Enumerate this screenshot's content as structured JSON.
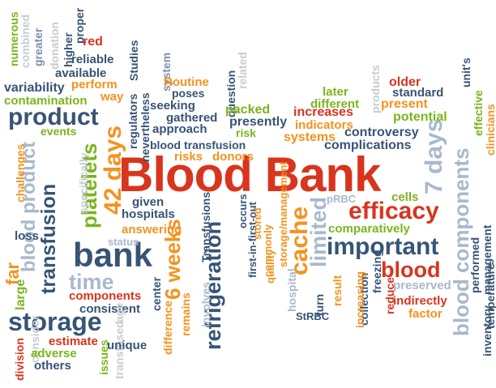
{
  "colors": {
    "red": "#d9341e",
    "orange": "#f5921e",
    "green": "#7ab51d",
    "navy": "#375475",
    "slate": "#7c90a8",
    "lightblue": "#a9b9cc",
    "lightgray": "#c6ccd3",
    "background": "#ffffff"
  },
  "words": [
    {
      "text": "Blood Bank",
      "color": "red"
    },
    {
      "text": "efficacy",
      "color": "red"
    },
    {
      "text": "important",
      "color": "navy"
    },
    {
      "text": "blood",
      "color": "red"
    },
    {
      "text": "bank",
      "color": "navy"
    },
    {
      "text": "storage",
      "color": "navy"
    },
    {
      "text": "product",
      "color": "navy"
    },
    {
      "text": "time",
      "color": "lightblue"
    },
    {
      "text": "transfusion",
      "color": "navy"
    },
    {
      "text": "platelets",
      "color": "green"
    },
    {
      "text": "42 days",
      "color": "orange"
    },
    {
      "text": "6 weeks",
      "color": "orange"
    },
    {
      "text": "refrigeration",
      "color": "navy"
    },
    {
      "text": "cache",
      "color": "orange"
    },
    {
      "text": "limited",
      "color": "lightblue"
    },
    {
      "text": "7 days",
      "color": "lightblue"
    },
    {
      "text": "blood components",
      "color": "lightblue"
    },
    {
      "text": "blood product",
      "color": "lightblue"
    },
    {
      "text": "far",
      "color": "orange"
    },
    {
      "text": "numerous",
      "color": "green"
    },
    {
      "text": "combined",
      "color": "lightgray"
    },
    {
      "text": "greater",
      "color": "slate"
    },
    {
      "text": "donation",
      "color": "lightgray"
    },
    {
      "text": "higher",
      "color": "navy"
    },
    {
      "text": "proper",
      "color": "navy"
    },
    {
      "text": "red",
      "color": "red"
    },
    {
      "text": "reliable",
      "color": "navy"
    },
    {
      "text": "available",
      "color": "navy"
    },
    {
      "text": "Studies",
      "color": "navy"
    },
    {
      "text": "system",
      "color": "slate"
    },
    {
      "text": "related",
      "color": "lightgray"
    },
    {
      "text": "variability",
      "color": "navy"
    },
    {
      "text": "perform",
      "color": "orange"
    },
    {
      "text": "contamination",
      "color": "green"
    },
    {
      "text": "way",
      "color": "orange"
    },
    {
      "text": "regulators",
      "color": "navy"
    },
    {
      "text": "nevertheless",
      "color": "navy"
    },
    {
      "text": "Routine",
      "color": "orange"
    },
    {
      "text": "poses",
      "color": "navy"
    },
    {
      "text": "seeking",
      "color": "navy"
    },
    {
      "text": "gathered",
      "color": "navy"
    },
    {
      "text": "question",
      "color": "navy"
    },
    {
      "text": "approach",
      "color": "navy"
    },
    {
      "text": "events",
      "color": "green"
    },
    {
      "text": "blood transfusion",
      "color": "navy"
    },
    {
      "text": "risks",
      "color": "orange"
    },
    {
      "text": "donors",
      "color": "orange"
    },
    {
      "text": "packed",
      "color": "green"
    },
    {
      "text": "presently",
      "color": "navy"
    },
    {
      "text": "risk",
      "color": "green"
    },
    {
      "text": "systems",
      "color": "orange"
    },
    {
      "text": "indicators",
      "color": "orange"
    },
    {
      "text": "increases",
      "color": "red"
    },
    {
      "text": "different",
      "color": "green"
    },
    {
      "text": "later",
      "color": "green"
    },
    {
      "text": "collection",
      "color": "navy"
    },
    {
      "text": "controversy",
      "color": "navy"
    },
    {
      "text": "complications",
      "color": "navy"
    },
    {
      "text": "products",
      "color": "lightgray"
    },
    {
      "text": "older",
      "color": "red"
    },
    {
      "text": "standard",
      "color": "navy"
    },
    {
      "text": "present",
      "color": "orange"
    },
    {
      "text": "potential",
      "color": "green"
    },
    {
      "text": "unit's",
      "color": "navy"
    },
    {
      "text": "effective",
      "color": "green"
    },
    {
      "text": "clinicians",
      "color": "orange"
    },
    {
      "text": "management",
      "color": "navy"
    },
    {
      "text": "performed",
      "color": "navy"
    },
    {
      "text": "temperature",
      "color": "navy"
    },
    {
      "text": "inventory",
      "color": "navy"
    },
    {
      "text": "challenges",
      "color": "orange"
    },
    {
      "text": "specifically",
      "color": "lightgray"
    },
    {
      "text": "given",
      "color": "navy"
    },
    {
      "text": "hospitals",
      "color": "navy"
    },
    {
      "text": "answering",
      "color": "orange"
    },
    {
      "text": "status",
      "color": "lightblue"
    },
    {
      "text": "loss",
      "color": "navy"
    },
    {
      "text": "occurs",
      "color": "navy"
    },
    {
      "text": "first-in-first-out",
      "color": "navy"
    },
    {
      "text": "commonly",
      "color": "orange"
    },
    {
      "text": "stored",
      "color": "orange"
    },
    {
      "text": "storage/management",
      "color": "orange"
    },
    {
      "text": "quality",
      "color": "orange"
    },
    {
      "text": "pRBC",
      "color": "lightblue"
    },
    {
      "text": "cells",
      "color": "green"
    },
    {
      "text": "comparatively",
      "color": "green"
    },
    {
      "text": "Transfusions",
      "color": "navy"
    },
    {
      "text": "involves",
      "color": "lightblue"
    },
    {
      "text": "hospital",
      "color": "lightblue"
    },
    {
      "text": "turn",
      "color": "navy"
    },
    {
      "text": "StRBC",
      "color": "navy"
    },
    {
      "text": "result",
      "color": "orange"
    },
    {
      "text": "increasing",
      "color": "orange"
    },
    {
      "text": "freezing",
      "color": "navy"
    },
    {
      "text": "reduce",
      "color": "red"
    },
    {
      "text": "preserved",
      "color": "lightblue"
    },
    {
      "text": "indirectly",
      "color": "red"
    },
    {
      "text": "factor",
      "color": "orange"
    },
    {
      "text": "components",
      "color": "red"
    },
    {
      "text": "consistent",
      "color": "navy"
    },
    {
      "text": "division",
      "color": "red"
    },
    {
      "text": "large",
      "color": "green"
    },
    {
      "text": "consider",
      "color": "lightgray"
    },
    {
      "text": "estimate",
      "color": "red"
    },
    {
      "text": "adverse",
      "color": "green"
    },
    {
      "text": "others",
      "color": "navy"
    },
    {
      "text": "issues",
      "color": "green"
    },
    {
      "text": "age",
      "color": "lightgray"
    },
    {
      "text": "transfused",
      "color": "lightgray"
    },
    {
      "text": "center",
      "color": "navy"
    },
    {
      "text": "unique",
      "color": "navy"
    },
    {
      "text": "difference",
      "color": "orange"
    },
    {
      "text": "remains",
      "color": "orange"
    }
  ]
}
